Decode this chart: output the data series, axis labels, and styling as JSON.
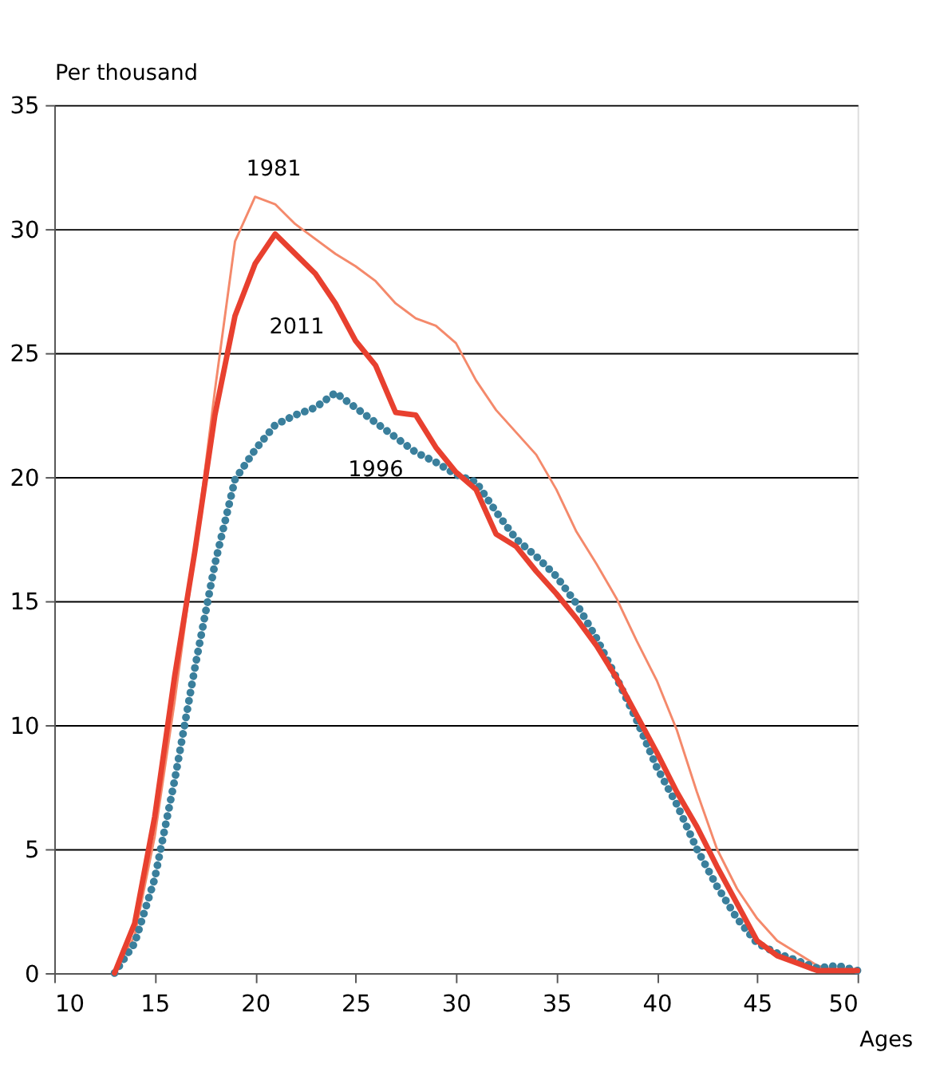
{
  "chart_data": {
    "type": "line",
    "ylabel": "Per thousand",
    "xlabel": "Ages",
    "x": [
      13,
      14,
      15,
      16,
      17,
      18,
      19,
      20,
      21,
      22,
      23,
      24,
      25,
      26,
      27,
      28,
      29,
      30,
      31,
      32,
      33,
      34,
      35,
      36,
      37,
      38,
      39,
      40,
      41,
      42,
      43,
      44,
      45,
      46,
      47,
      48,
      49,
      50
    ],
    "series": [
      {
        "name": "1981",
        "color": "#f4896b",
        "line_style": "solid",
        "values": [
          0,
          1.5,
          5.5,
          11,
          17,
          23.5,
          29.5,
          31.3,
          31.0,
          30.2,
          29.6,
          29.0,
          28.5,
          27.9,
          27.0,
          26.4,
          26.1,
          25.4,
          23.9,
          22.7,
          21.8,
          20.9,
          19.5,
          17.8,
          16.5,
          15.1,
          13.4,
          11.8,
          9.8,
          7.3,
          5.0,
          3.4,
          2.2,
          1.3,
          0.8,
          0.3,
          0.1,
          0.1
        ]
      },
      {
        "name": "1996",
        "color": "#3a7f9c",
        "line_style": "dotted",
        "values": [
          0,
          1.2,
          3.8,
          7.8,
          12.3,
          16.5,
          19.9,
          21.1,
          22.1,
          22.5,
          22.8,
          23.4,
          22.8,
          22.2,
          21.6,
          21.0,
          20.6,
          20.1,
          19.8,
          18.6,
          17.5,
          16.8,
          16.0,
          14.9,
          13.5,
          11.9,
          10.2,
          8.3,
          6.8,
          5.0,
          3.5,
          2.2,
          1.2,
          0.8,
          0.5,
          0.2,
          0.3,
          0.1
        ]
      },
      {
        "name": "2011",
        "color": "#e8402f",
        "line_style": "solid",
        "values": [
          0,
          2.0,
          6.3,
          12,
          17,
          22.5,
          26.5,
          28.6,
          29.8,
          29.0,
          28.2,
          27.0,
          25.5,
          24.5,
          22.6,
          22.5,
          21.2,
          20.2,
          19.5,
          17.7,
          17.2,
          16.2,
          15.3,
          14.3,
          13.2,
          11.9,
          10.4,
          8.9,
          7.3,
          5.9,
          4.3,
          2.8,
          1.3,
          0.7,
          0.4,
          0.1,
          0.1,
          0.1
        ]
      }
    ],
    "xlim": [
      10,
      50
    ],
    "xticks": [
      10,
      15,
      20,
      25,
      30,
      35,
      40,
      45,
      50
    ],
    "ylim": [
      0,
      35
    ],
    "yticks": [
      0,
      5,
      10,
      15,
      20,
      25,
      30,
      35
    ],
    "grid": "y",
    "legend": false,
    "marker": "none"
  }
}
